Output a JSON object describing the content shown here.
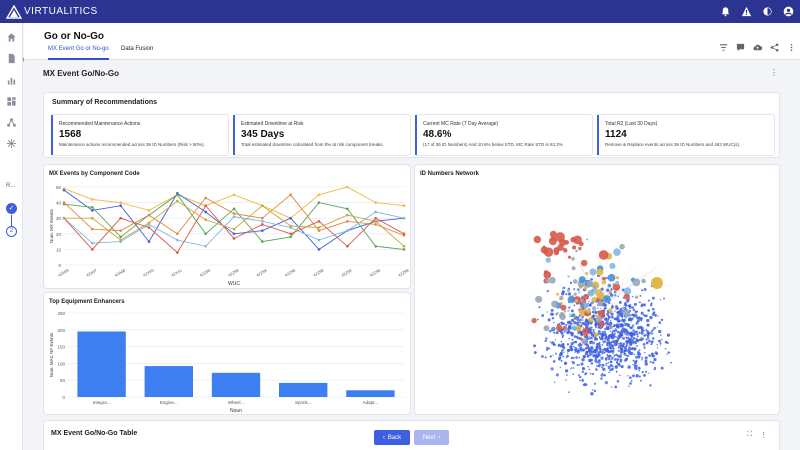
{
  "app": {
    "logo_text": "VIRTUALITICS"
  },
  "topbar": {
    "icons": [
      "bell-icon",
      "warning-icon",
      "theme-icon",
      "account-icon"
    ]
  },
  "sidebar": {
    "icons": [
      "home-icon",
      "document-icon",
      "bar-chart-icon",
      "dashboard-icon",
      "network-icon",
      "hub-icon"
    ],
    "expand_glyph": "›",
    "label": "R...",
    "step_check": "✓",
    "step_number": "2"
  },
  "header": {
    "title": "Go or No-Go",
    "tabs": [
      {
        "label": "MX Event Go or No-go",
        "active": true
      },
      {
        "label": "Data Fusion",
        "active": false
      }
    ],
    "actions": [
      "filter-icon",
      "comment-icon",
      "cloud-upload-icon",
      "share-icon",
      "more-icon"
    ]
  },
  "section": {
    "title": "MX Event Go/No-Go",
    "more_glyph": "⋮"
  },
  "summary": {
    "title": "Summary of Recommendations",
    "kpis": [
      {
        "label": "Recommended Maintenance Actions",
        "value": "1568",
        "sub": "Maintenance actions recommended across 36 ID Numbers (Risk > 50%)."
      },
      {
        "label": "Estimated Downtime at Risk",
        "value": "345 Days",
        "sub": "Total estimated downtime calculated from the at risk component breaks."
      },
      {
        "label": "Current MC Rate (7 Day Average)",
        "value": "48.6%",
        "sub": "(17 of 36 ID Numbers) And 10.6% below STD. MC Rate STD is 63.2%"
      },
      {
        "label": "Total R2 (Last 30 Days)",
        "value": "1124",
        "sub": "Remove & Replace events across 36 ID Numbers and 463 WUC(s)."
      }
    ]
  },
  "line_chart": {
    "title": "MX Events by Component Code",
    "chart_data": {
      "type": "line",
      "xlabel": "WUC",
      "ylabel": "Num. MX Events",
      "ylim": [
        0,
        50
      ],
      "yticks": [
        "0",
        "10",
        "20",
        "30",
        "40",
        "50"
      ],
      "categories": [
        "42A99",
        "42A97",
        "42A00",
        "42X99",
        "42X41",
        "42Z00",
        "42Z98",
        "42Z9K",
        "42Z98",
        "42Z98",
        "42Z9K",
        "42Z98",
        "42Z98"
      ],
      "colors": [
        "#f4b63e",
        "#3d5fe0",
        "#5aa657",
        "#e08a3c",
        "#7fb9e6",
        "#d65a4a",
        "#c9a53b"
      ],
      "series": [
        {
          "values": [
            49,
            42,
            40,
            35,
            45,
            38,
            45,
            38,
            30,
            45,
            50,
            40,
            38
          ]
        },
        {
          "values": [
            48,
            35,
            38,
            15,
            46,
            34,
            20,
            22,
            30,
            10,
            22,
            28,
            30
          ]
        },
        {
          "values": [
            39,
            37,
            18,
            32,
            45,
            20,
            36,
            15,
            18,
            40,
            36,
            12,
            10
          ]
        },
        {
          "values": [
            40,
            23,
            22,
            32,
            20,
            43,
            33,
            30,
            45,
            22,
            28,
            26,
            19
          ]
        },
        {
          "values": [
            30,
            14,
            15,
            26,
            16,
            12,
            31,
            28,
            24,
            16,
            22,
            34,
            30
          ]
        },
        {
          "values": [
            30,
            10,
            30,
            24,
            8,
            38,
            17,
            26,
            20,
            28,
            12,
            30,
            20
          ]
        },
        {
          "values": [
            30,
            30,
            16,
            27,
            41,
            29,
            23,
            38,
            25,
            24,
            32,
            28,
            12
          ]
        }
      ]
    }
  },
  "bar_chart": {
    "title": "Top Equipment Enhancers",
    "chart_data": {
      "type": "bar",
      "xlabel": "Noun",
      "ylabel": "Num. MAC NF Events",
      "ylim": [
        0,
        250
      ],
      "yticks": [
        "0",
        "50",
        "100",
        "150",
        "200",
        "250"
      ],
      "categories": [
        "Integra...",
        "Engine...",
        "Wheel...",
        "Sprink...",
        "Adapt..."
      ],
      "values": [
        195,
        92,
        72,
        42,
        20
      ],
      "color": "#3d7ef0"
    }
  },
  "network": {
    "title": "ID Numbers Network",
    "palette": [
      "#3d5fe0",
      "#5b78e8",
      "#e0b74a",
      "#d65a4a",
      "#7fb9e6",
      "#9aa6b8",
      "#4b8fd6"
    ]
  },
  "table": {
    "title": "MX Event Go/No-Go Table",
    "expand_glyph": "⛶",
    "more_glyph": "⋮"
  },
  "pager": {
    "back_label": "Back",
    "next_label": "Next",
    "back_glyph": "‹",
    "next_glyph": "›"
  }
}
